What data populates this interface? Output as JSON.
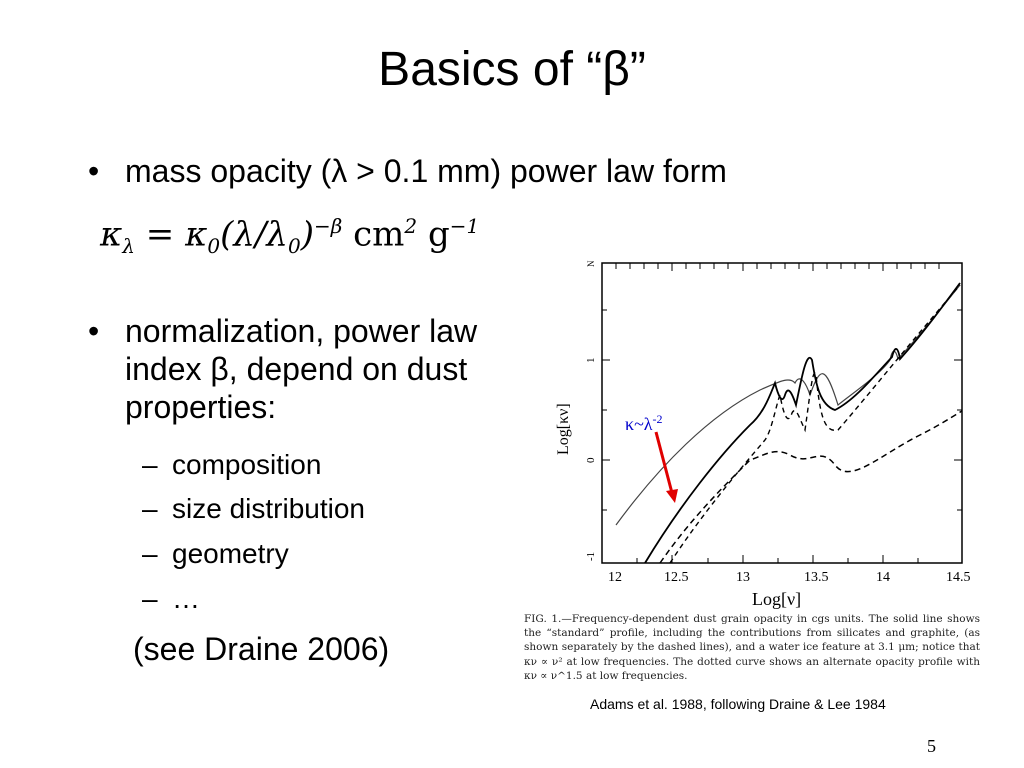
{
  "title": "Basics of “β”",
  "bullets": {
    "b1": "mass opacity (λ > 0.1 mm) power law form",
    "b2": "normalization, power law index β, depend on dust properties:",
    "sub": [
      "composition",
      "size distribution",
      "geometry",
      "…"
    ],
    "note": "(see Draine 2006)"
  },
  "equation": {
    "lhs": "κ",
    "lhs_sub": "λ",
    "rhs_a": "= κ",
    "rhs_a_sub": "0",
    "rhs_b": "(λ/λ",
    "rhs_b_sub": "0",
    "rhs_c": ")",
    "exp": "−β",
    "units_a": "cm",
    "units_a_exp": "2",
    "units_b": "g",
    "units_b_exp": "−1"
  },
  "figure": {
    "y_axis_label": "Log[κν]",
    "x_axis_label": "Log[ν]",
    "x_ticks": [
      "12",
      "12.5",
      "13",
      "13.5",
      "14",
      "14.5"
    ],
    "y_ticks": [
      "N",
      "1",
      "0",
      "-1"
    ],
    "annotation_base": "κ~λ",
    "annotation_exp": "-2",
    "annotation_color": "#0000cc",
    "arrow_color": "#e00000",
    "caption": "FIG. 1.—Frequency-dependent dust grain opacity in cgs units. The solid line shows the “standard” profile, including the contributions from silicates and graphite, (as shown separately by the dashed lines), and a water ice feature at 3.1 μm; notice that κν ∝ ν² at low frequencies. The dotted curve shows an alternate opacity profile with κν ∝ ν^1.5 at low frequencies."
  },
  "credit": "Adams et al. 1988, following Draine & Lee 1984",
  "page_number": "5"
}
